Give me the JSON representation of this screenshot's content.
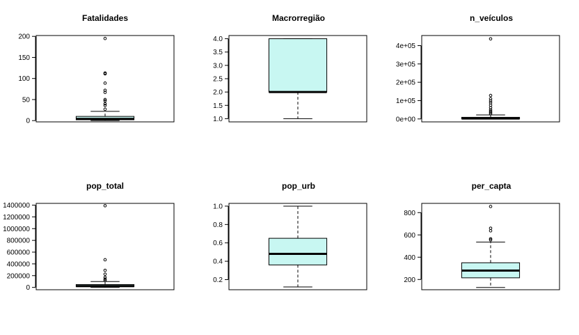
{
  "chart_data": [
    {
      "type": "box",
      "title": "Fatalidades",
      "ylim": [
        -3,
        202
      ],
      "yticks": [
        0,
        50,
        100,
        150,
        200
      ],
      "ytick_labels": [
        "0",
        "50",
        "100",
        "150",
        "200"
      ],
      "box": {
        "whisker_low": 0,
        "q1": 2,
        "median": 4,
        "q3": 10,
        "whisker_high": 22
      },
      "outliers": [
        195,
        113,
        111,
        89,
        72,
        67,
        50,
        47,
        40,
        36,
        27
      ],
      "fill": "#c8f7f2"
    },
    {
      "type": "box",
      "title": "Macrorregião",
      "ylim": [
        0.88,
        4.12
      ],
      "yticks": [
        1.0,
        1.5,
        2.0,
        2.5,
        3.0,
        3.5,
        4.0
      ],
      "ytick_labels": [
        "1.0",
        "1.5",
        "2.0",
        "2.5",
        "3.0",
        "3.5",
        "4.0"
      ],
      "box": {
        "whisker_low": 1,
        "q1": 2,
        "median": 2,
        "q3": 4,
        "whisker_high": 4
      },
      "outliers": [],
      "fill": "#c8f7f2"
    },
    {
      "type": "box",
      "title": "n_veículos",
      "ylim": [
        -16000,
        455000
      ],
      "yticks": [
        0,
        100000,
        200000,
        300000,
        400000
      ],
      "ytick_labels": [
        "0e+00",
        "1e+05",
        "2e+05",
        "3e+05",
        "4e+05"
      ],
      "box": {
        "whisker_low": 0,
        "q1": 500,
        "median": 2500,
        "q3": 9000,
        "whisker_high": 22000
      },
      "outliers": [
        437000,
        128000,
        110000,
        98000,
        88000,
        75000,
        62000,
        50000,
        42000,
        35000,
        28000
      ],
      "fill": "#c8f7f2"
    },
    {
      "type": "box",
      "title": "pop_total",
      "ylim": [
        -40000,
        1430000
      ],
      "yticks": [
        0,
        200000,
        400000,
        600000,
        800000,
        1000000,
        1200000,
        1400000
      ],
      "ytick_labels": [
        "0",
        "200000",
        "400000",
        "600000",
        "800000",
        "1000000",
        "1200000",
        "1400000"
      ],
      "box": {
        "whisker_low": 0,
        "q1": 12000,
        "median": 22000,
        "q3": 48000,
        "whisker_high": 100000
      },
      "outliers": [
        1390000,
        470000,
        290000,
        225000,
        170000,
        140000,
        118000
      ],
      "fill": "#c8f7f2"
    },
    {
      "type": "box",
      "title": "pop_urb",
      "ylim": [
        0.09,
        1.03
      ],
      "yticks": [
        0.2,
        0.4,
        0.6,
        0.8,
        1.0
      ],
      "ytick_labels": [
        "0.2",
        "0.4",
        "0.6",
        "0.8",
        "1.0"
      ],
      "box": {
        "whisker_low": 0.12,
        "q1": 0.36,
        "median": 0.48,
        "q3": 0.65,
        "whisker_high": 1.0
      },
      "outliers": [],
      "fill": "#c8f7f2"
    },
    {
      "type": "box",
      "title": "per_capta",
      "ylim": [
        108,
        883
      ],
      "yticks": [
        200,
        400,
        600,
        800
      ],
      "ytick_labels": [
        "200",
        "400",
        "600",
        "800"
      ],
      "box": {
        "whisker_low": 128,
        "q1": 215,
        "median": 280,
        "q3": 350,
        "whisker_high": 535
      },
      "outliers": [
        855,
        660,
        637,
        565,
        555
      ],
      "fill": "#c8f7f2"
    }
  ]
}
